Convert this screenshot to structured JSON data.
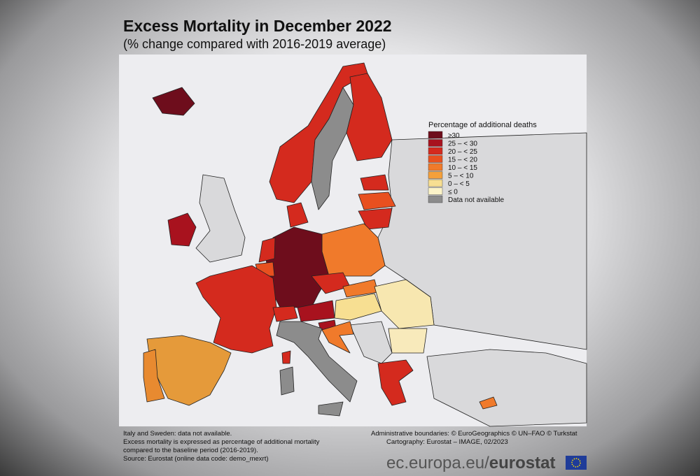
{
  "header": {
    "title": "Excess Mortality in December 2022",
    "subtitle": "(% change compared with 2016-2019 average)"
  },
  "legend": {
    "title": "Percentage of additional deaths",
    "items": [
      {
        "label": "≥30",
        "color": "#6e0d1c"
      },
      {
        "label": "25 – < 30",
        "color": "#a8121e"
      },
      {
        "label": "20 – < 25",
        "color": "#d42a1e"
      },
      {
        "label": "15 – < 20",
        "color": "#e8501f"
      },
      {
        "label": "10 – < 15",
        "color": "#f07a2b"
      },
      {
        "label": "5 – < 10",
        "color": "#f4a03b"
      },
      {
        "label": "0 – < 5",
        "color": "#f7df92"
      },
      {
        "label": "≤ 0",
        "color": "#fbf3c8"
      },
      {
        "label": "Data not available",
        "color": "#8c8c8c"
      }
    ]
  },
  "notes": [
    "Italy and Sweden: data not available.",
    "Excess mortality is expressed as percentage of additional mortality",
    "compared to the baseline period (2016-2019).",
    "Source: Eurostat (online data code: demo_mexrt)"
  ],
  "credits": [
    "Administrative boundaries: © EuroGeographics © UN–FAO © Turkstat",
    "Cartography: Eurostat – IMAGE, 02/2023"
  ],
  "footer": {
    "url": "ec.europa.eu/",
    "brand": "eurostat"
  }
}
